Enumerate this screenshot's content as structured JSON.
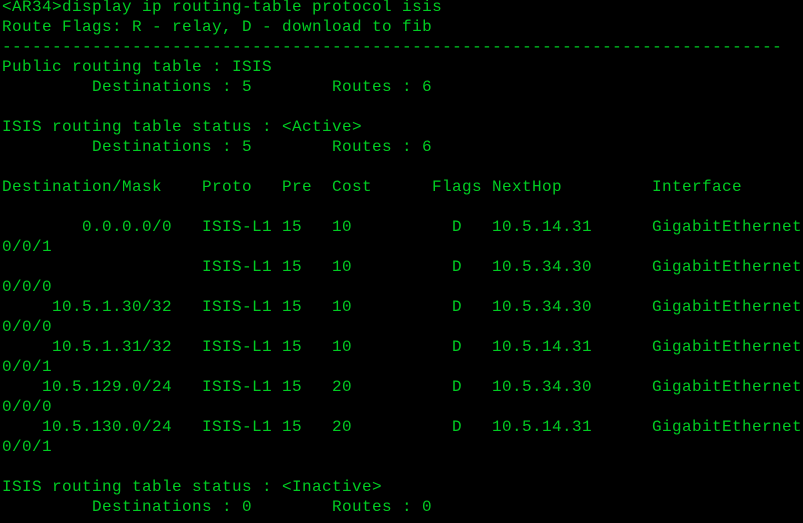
{
  "terminal": {
    "prompt": "<AR34>display ip routing-table protocol isis",
    "route_flags": "Route Flags: R - relay, D - download to fib",
    "separator": "------------------------------------------------------------------------------",
    "public_table": {
      "title": "Public routing table : ISIS",
      "destinations": "Destinations : 5",
      "routes": "Routes : 6"
    },
    "active": {
      "title": "ISIS routing table status : <Active>",
      "destinations": "Destinations : 5",
      "routes": "Routes : 6"
    },
    "columns": {
      "destination": "Destination/Mask",
      "proto": "Proto",
      "pre": "Pre",
      "cost": "Cost",
      "flags": "Flags",
      "nexthop": "NextHop",
      "interface": "Interface"
    },
    "rows": [
      {
        "destination": "0.0.0.0/0",
        "proto": "ISIS-L1",
        "pre": "15",
        "cost": "10",
        "flags": "D",
        "nexthop": "10.5.14.31",
        "interface": "GigabitEthernet",
        "interface_cont": "0/0/1"
      },
      {
        "destination": "",
        "proto": "ISIS-L1",
        "pre": "15",
        "cost": "10",
        "flags": "D",
        "nexthop": "10.5.34.30",
        "interface": "GigabitEthernet",
        "interface_cont": "0/0/0"
      },
      {
        "destination": "10.5.1.30/32",
        "proto": "ISIS-L1",
        "pre": "15",
        "cost": "10",
        "flags": "D",
        "nexthop": "10.5.34.30",
        "interface": "GigabitEthernet",
        "interface_cont": "0/0/0"
      },
      {
        "destination": "10.5.1.31/32",
        "proto": "ISIS-L1",
        "pre": "15",
        "cost": "10",
        "flags": "D",
        "nexthop": "10.5.14.31",
        "interface": "GigabitEthernet",
        "interface_cont": "0/0/1"
      },
      {
        "destination": "10.5.129.0/24",
        "proto": "ISIS-L1",
        "pre": "15",
        "cost": "20",
        "flags": "D",
        "nexthop": "10.5.34.30",
        "interface": "GigabitEthernet",
        "interface_cont": "0/0/0"
      },
      {
        "destination": "10.5.130.0/24",
        "proto": "ISIS-L1",
        "pre": "15",
        "cost": "20",
        "flags": "D",
        "nexthop": "10.5.14.31",
        "interface": "GigabitEthernet",
        "interface_cont": "0/0/1"
      }
    ],
    "inactive": {
      "title": "ISIS routing table status : <Inactive>",
      "destinations": "Destinations : 0",
      "routes": "Routes : 0"
    }
  },
  "colors": {
    "background": "#000000",
    "text": "#00cc22"
  }
}
